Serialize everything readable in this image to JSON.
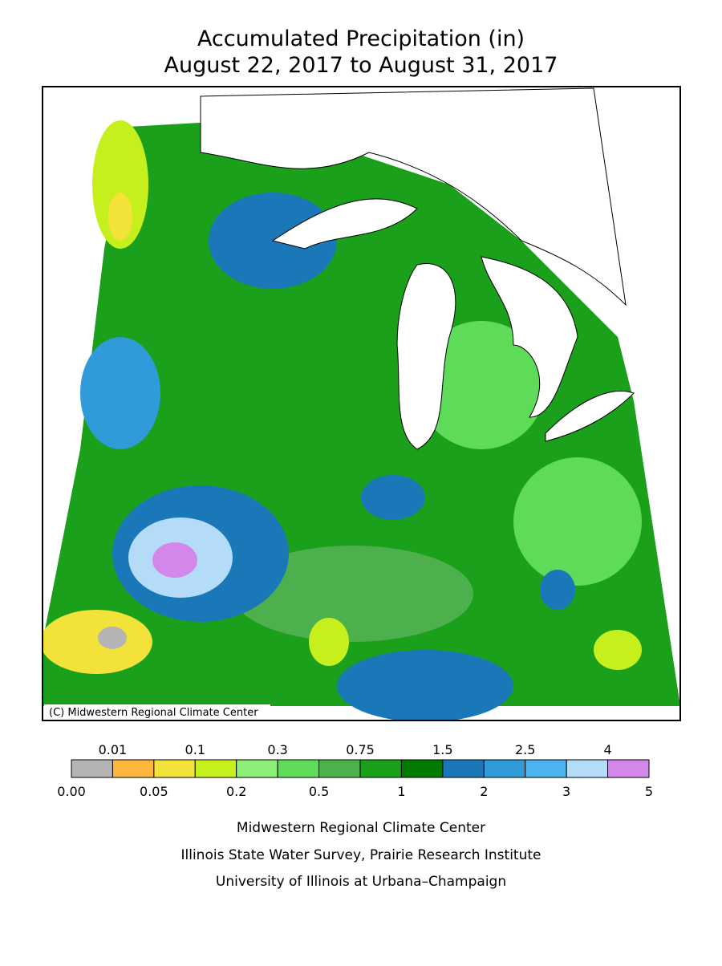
{
  "title": [
    "Accumulated Precipitation (in)",
    "August 22, 2017 to August 31, 2017"
  ],
  "copyright": "(C) Midwestern Regional Climate Center",
  "legend": {
    "colors": [
      "#b4b4b4",
      "#fbb73c",
      "#f2e23a",
      "#c6ef1e",
      "#8def78",
      "#5fdb5a",
      "#4cb04c",
      "#1aa01a",
      "#007a00",
      "#1a78b8",
      "#2f9bd9",
      "#4ab4ee",
      "#b4dcf8",
      "#d487ea"
    ],
    "top_labels": [
      "0.01",
      "0.1",
      "0.3",
      "0.75",
      "1.5",
      "2.5",
      "4"
    ],
    "bottom_labels": [
      "0.00",
      "0.05",
      "0.2",
      "0.5",
      "1",
      "2",
      "3",
      "5"
    ]
  },
  "credits": [
    "Midwestern Regional Climate Center",
    "Illinois State Water Survey, Prairie Research Institute",
    "University of Illinois at Urbana–Champaign"
  ]
}
